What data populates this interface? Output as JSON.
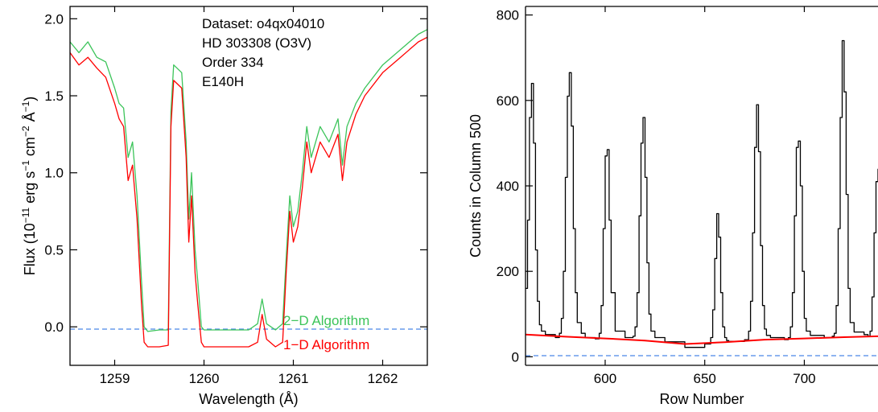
{
  "chart_data": [
    {
      "type": "line",
      "xlabel": "Wavelength (Å)",
      "ylabel": {
        "main": "Flux (10",
        "exp1": "−11",
        "part2": " erg s",
        "exp2": "−1",
        "part3": " cm",
        "exp3": "−2",
        "part4": " Å",
        "exp4": "−1",
        "close": ")"
      },
      "xlim": [
        1258.5,
        1262.5
      ],
      "ylim": [
        -0.25,
        2.08
      ],
      "x_ticks": [
        1259,
        1260,
        1261,
        1262
      ],
      "y_ticks": [
        0.0,
        0.5,
        1.0,
        1.5,
        2.0
      ],
      "x_tick_labels": [
        "1259",
        "1260",
        "1261",
        "1262"
      ],
      "y_tick_labels": [
        "0.0",
        "0.5",
        "1.0",
        "1.5",
        "2.0"
      ],
      "annotations": [
        "Dataset: o4qx04010",
        "HD 303308 (O3V)",
        "Order 334",
        "E140H"
      ],
      "reference_line": {
        "y": 0.0,
        "style": "dashed",
        "color": "#4a86e8"
      },
      "series": [
        {
          "name": "2−D Algorithm",
          "color": "#3cc45a",
          "x": [
            1258.5,
            1258.6,
            1258.7,
            1258.8,
            1258.9,
            1259.0,
            1259.05,
            1259.1,
            1259.15,
            1259.2,
            1259.25,
            1259.3,
            1259.33,
            1259.37,
            1259.5,
            1259.6,
            1259.63,
            1259.66,
            1259.75,
            1259.8,
            1259.83,
            1259.86,
            1259.9,
            1259.93,
            1259.97,
            1260.0,
            1260.5,
            1260.6,
            1260.65,
            1260.7,
            1260.8,
            1260.88,
            1260.92,
            1260.96,
            1261.0,
            1261.05,
            1261.1,
            1261.15,
            1261.2,
            1261.3,
            1261.4,
            1261.5,
            1261.55,
            1261.6,
            1261.7,
            1261.8,
            1262.0,
            1262.2,
            1262.4,
            1262.5
          ],
          "y": [
            1.85,
            1.78,
            1.85,
            1.75,
            1.72,
            1.55,
            1.45,
            1.42,
            1.1,
            1.2,
            0.85,
            0.3,
            0.0,
            -0.03,
            -0.02,
            -0.02,
            1.4,
            1.7,
            1.65,
            1.2,
            0.7,
            1.0,
            0.5,
            0.3,
            0.0,
            -0.02,
            -0.02,
            0.02,
            0.18,
            0.02,
            -0.02,
            0.02,
            0.45,
            0.85,
            0.65,
            0.75,
            1.0,
            1.3,
            1.1,
            1.3,
            1.2,
            1.35,
            1.05,
            1.3,
            1.45,
            1.55,
            1.7,
            1.8,
            1.9,
            1.93
          ]
        },
        {
          "name": "1−D Algorithm",
          "color": "#ff0000",
          "x": [
            1258.5,
            1258.6,
            1258.7,
            1258.8,
            1258.9,
            1259.0,
            1259.05,
            1259.1,
            1259.15,
            1259.2,
            1259.25,
            1259.3,
            1259.33,
            1259.37,
            1259.5,
            1259.6,
            1259.63,
            1259.66,
            1259.75,
            1259.8,
            1259.83,
            1259.86,
            1259.9,
            1259.93,
            1259.97,
            1260.0,
            1260.5,
            1260.6,
            1260.65,
            1260.7,
            1260.8,
            1260.88,
            1260.92,
            1260.96,
            1261.0,
            1261.05,
            1261.1,
            1261.15,
            1261.2,
            1261.3,
            1261.4,
            1261.5,
            1261.55,
            1261.6,
            1261.7,
            1261.8,
            1262.0,
            1262.2,
            1262.4,
            1262.5
          ],
          "y": [
            1.78,
            1.7,
            1.75,
            1.68,
            1.62,
            1.45,
            1.35,
            1.3,
            0.95,
            1.05,
            0.7,
            0.15,
            -0.1,
            -0.13,
            -0.13,
            -0.12,
            1.3,
            1.6,
            1.55,
            1.1,
            0.55,
            0.85,
            0.35,
            0.15,
            -0.1,
            -0.13,
            -0.13,
            -0.1,
            0.08,
            -0.08,
            -0.13,
            -0.1,
            0.35,
            0.75,
            0.55,
            0.65,
            0.9,
            1.2,
            1.0,
            1.2,
            1.1,
            1.25,
            0.95,
            1.2,
            1.38,
            1.5,
            1.65,
            1.75,
            1.85,
            1.88
          ]
        }
      ]
    },
    {
      "type": "line",
      "xlabel": "Row Number",
      "ylabel": "Counts in Column 500",
      "xlim": [
        560,
        737
      ],
      "ylim": [
        -20,
        820
      ],
      "x_ticks": [
        600,
        650,
        700
      ],
      "y_ticks": [
        0,
        200,
        400,
        600,
        800
      ],
      "x_tick_labels": [
        "600",
        "650",
        "700"
      ],
      "y_tick_labels": [
        "0",
        "200",
        "400",
        "600",
        "800"
      ],
      "reference_line": {
        "y": 0,
        "style": "dashed",
        "color": "#4a86e8"
      },
      "series": [
        {
          "name": "",
          "color": "#000000",
          "style": "steps",
          "x": [
            560,
            561,
            562,
            563,
            564,
            565,
            566,
            567,
            568,
            570,
            575,
            577,
            578,
            579,
            580,
            581,
            582,
            583,
            584,
            585,
            586,
            588,
            590,
            595,
            597,
            598,
            599,
            600,
            601,
            602,
            603,
            605,
            610,
            614,
            615,
            616,
            617,
            618,
            619,
            620,
            621,
            622,
            623,
            625,
            630,
            640,
            650,
            653,
            654,
            655,
            656,
            657,
            658,
            659,
            660,
            661,
            662,
            665,
            670,
            672,
            673,
            674,
            675,
            676,
            677,
            678,
            679,
            680,
            681,
            683,
            690,
            692,
            693,
            694,
            695,
            696,
            697,
            698,
            699,
            700,
            701,
            703,
            710,
            714,
            715,
            716,
            717,
            718,
            719,
            720,
            721,
            722,
            723,
            725,
            730,
            732,
            733,
            734,
            735,
            736,
            737
          ],
          "y": [
            160,
            320,
            560,
            640,
            500,
            250,
            130,
            75,
            60,
            52,
            45,
            55,
            90,
            200,
            420,
            610,
            665,
            540,
            300,
            150,
            80,
            55,
            45,
            42,
            55,
            120,
            300,
            470,
            485,
            320,
            150,
            60,
            45,
            48,
            70,
            150,
            330,
            500,
            560,
            420,
            220,
            100,
            60,
            45,
            35,
            22,
            30,
            45,
            110,
            230,
            335,
            280,
            150,
            70,
            45,
            38,
            36,
            36,
            40,
            60,
            130,
            290,
            490,
            590,
            480,
            260,
            120,
            65,
            50,
            45,
            40,
            45,
            70,
            150,
            330,
            490,
            505,
            400,
            200,
            90,
            60,
            50,
            45,
            48,
            55,
            120,
            300,
            560,
            740,
            620,
            380,
            160,
            80,
            58,
            52,
            48,
            60,
            140,
            290,
            410,
            440
          ]
        },
        {
          "name": "",
          "color": "#ff0000",
          "style": "smooth",
          "x": [
            560,
            580,
            600,
            620,
            640,
            660,
            680,
            700,
            720,
            737
          ],
          "y": [
            52,
            47,
            43,
            38,
            30,
            34,
            40,
            43,
            46,
            48
          ]
        }
      ]
    }
  ]
}
